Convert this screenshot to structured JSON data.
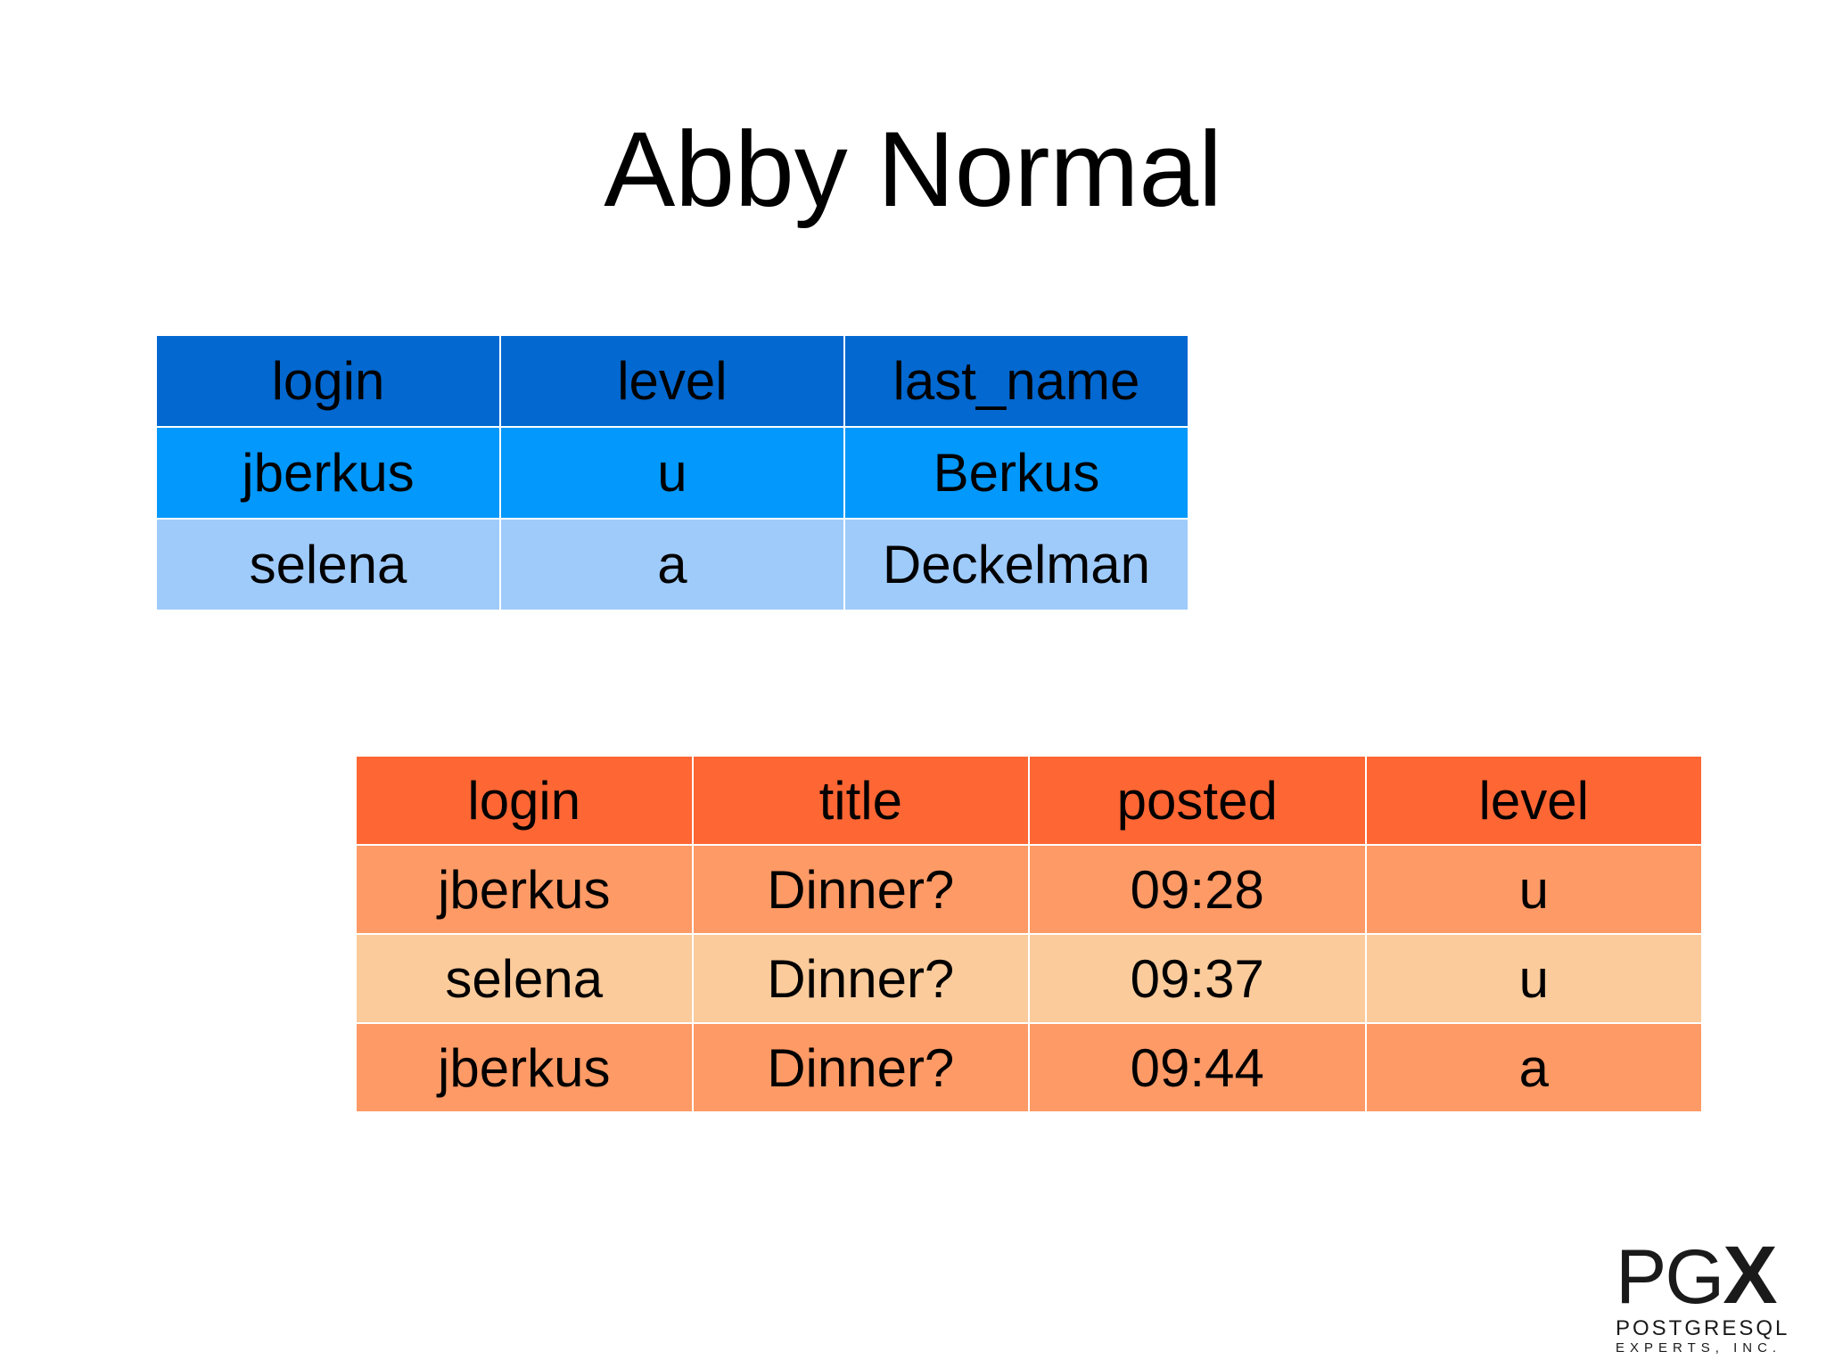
{
  "slide": {
    "title": "Abby Normal"
  },
  "users_table": {
    "headers": [
      "login",
      "level",
      "last_name"
    ],
    "rows": [
      [
        "jberkus",
        "u",
        "Berkus"
      ],
      [
        "selena",
        "a",
        "Deckelman"
      ]
    ]
  },
  "posts_table": {
    "headers": [
      "login",
      "title",
      "posted",
      "level"
    ],
    "rows": [
      [
        "jberkus",
        "Dinner?",
        "09:28",
        "u"
      ],
      [
        "selena",
        "Dinner?",
        "09:37",
        "u"
      ],
      [
        "jberkus",
        "Dinner?",
        "09:44",
        "a"
      ]
    ]
  },
  "logo": {
    "mark_pg": "PG",
    "mark_x": "X",
    "line1": "POSTGRESQL",
    "line2": "EXPERTS, INC."
  },
  "colors": {
    "users_header": "#0368d0",
    "users_row1": "#0398fb",
    "users_row2": "#9fcbfb",
    "posts_header": "#fe6634",
    "posts_row_odd": "#fe9a66",
    "posts_row_even": "#fbcb9b"
  }
}
